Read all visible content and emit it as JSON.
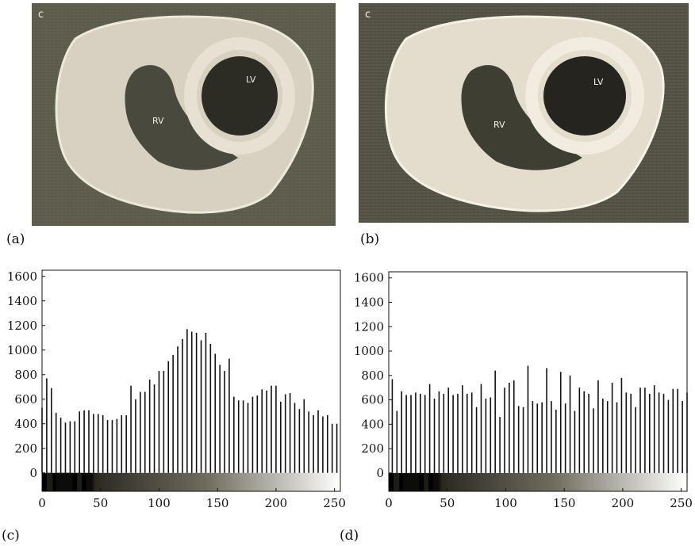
{
  "panels": {
    "a": {
      "label": "(a)",
      "corner_letter": "c",
      "annotations": [
        "RV",
        "LV"
      ]
    },
    "b": {
      "label": "(b)",
      "corner_letter": "c",
      "annotations": [
        "RV",
        "LV"
      ]
    },
    "c": {
      "label": "(c)"
    },
    "d": {
      "label": "(d)"
    }
  },
  "colors": {
    "image_background": "#5b5a4b",
    "tissue": "#ddd8c8",
    "cavity": "#2a2a22",
    "bars": "#111111",
    "gradient_start": "#000000",
    "gradient_mid": "#6e6c5c",
    "gradient_end": "#ffffff"
  },
  "chart_data": [
    {
      "panel": "c",
      "type": "bar",
      "grid": false,
      "xlim": [
        0,
        255
      ],
      "ylim": [
        -150,
        1650
      ],
      "xticks": [
        0,
        50,
        100,
        150,
        200,
        250
      ],
      "yticks": [
        0,
        200,
        400,
        600,
        800,
        1000,
        1200,
        1400,
        1600
      ],
      "x": [
        0,
        4,
        8,
        12,
        16,
        20,
        24,
        28,
        32,
        36,
        40,
        44,
        48,
        52,
        56,
        60,
        64,
        68,
        72,
        76,
        80,
        84,
        88,
        92,
        96,
        100,
        104,
        108,
        112,
        116,
        120,
        124,
        128,
        132,
        136,
        140,
        144,
        148,
        152,
        156,
        160,
        164,
        168,
        172,
        176,
        180,
        184,
        188,
        192,
        196,
        200,
        204,
        208,
        212,
        216,
        220,
        224,
        228,
        232,
        236,
        240,
        244,
        248,
        252
      ],
      "values": [
        530,
        770,
        690,
        490,
        450,
        410,
        420,
        420,
        500,
        510,
        510,
        480,
        480,
        470,
        430,
        430,
        440,
        470,
        470,
        710,
        600,
        660,
        660,
        760,
        720,
        830,
        830,
        910,
        960,
        1030,
        1090,
        1170,
        1150,
        1140,
        1080,
        1140,
        1050,
        970,
        880,
        830,
        930,
        620,
        590,
        590,
        570,
        620,
        630,
        680,
        670,
        710,
        710,
        580,
        640,
        650,
        570,
        520,
        600,
        500,
        470,
        510,
        460,
        470,
        400,
        400
      ]
    },
    {
      "panel": "d",
      "type": "bar",
      "grid": false,
      "xlim": [
        0,
        255
      ],
      "ylim": [
        -150,
        1650
      ],
      "xticks": [
        0,
        50,
        100,
        150,
        200,
        250
      ],
      "yticks": [
        0,
        200,
        400,
        600,
        800,
        1000,
        1200,
        1400,
        1600
      ],
      "x": [
        3,
        7,
        11,
        15,
        19,
        23,
        27,
        31,
        35,
        39,
        43,
        47,
        51,
        55,
        59,
        63,
        67,
        71,
        75,
        79,
        83,
        87,
        91,
        95,
        99,
        103,
        107,
        111,
        115,
        119,
        123,
        127,
        131,
        135,
        139,
        143,
        147,
        151,
        155,
        159,
        163,
        167,
        171,
        175,
        179,
        183,
        187,
        191,
        195,
        199,
        203,
        207,
        211,
        215,
        219,
        223,
        227,
        231,
        235,
        239,
        243,
        247,
        251,
        255
      ],
      "values": [
        770,
        510,
        670,
        640,
        640,
        660,
        650,
        640,
        730,
        610,
        670,
        650,
        700,
        640,
        650,
        720,
        650,
        660,
        540,
        730,
        610,
        620,
        840,
        460,
        700,
        740,
        760,
        550,
        540,
        880,
        590,
        570,
        580,
        860,
        590,
        520,
        830,
        570,
        800,
        510,
        700,
        670,
        650,
        530,
        760,
        610,
        590,
        740,
        580,
        780,
        660,
        650,
        540,
        700,
        700,
        650,
        720,
        660,
        650,
        600,
        690,
        690,
        590,
        660
      ]
    }
  ]
}
